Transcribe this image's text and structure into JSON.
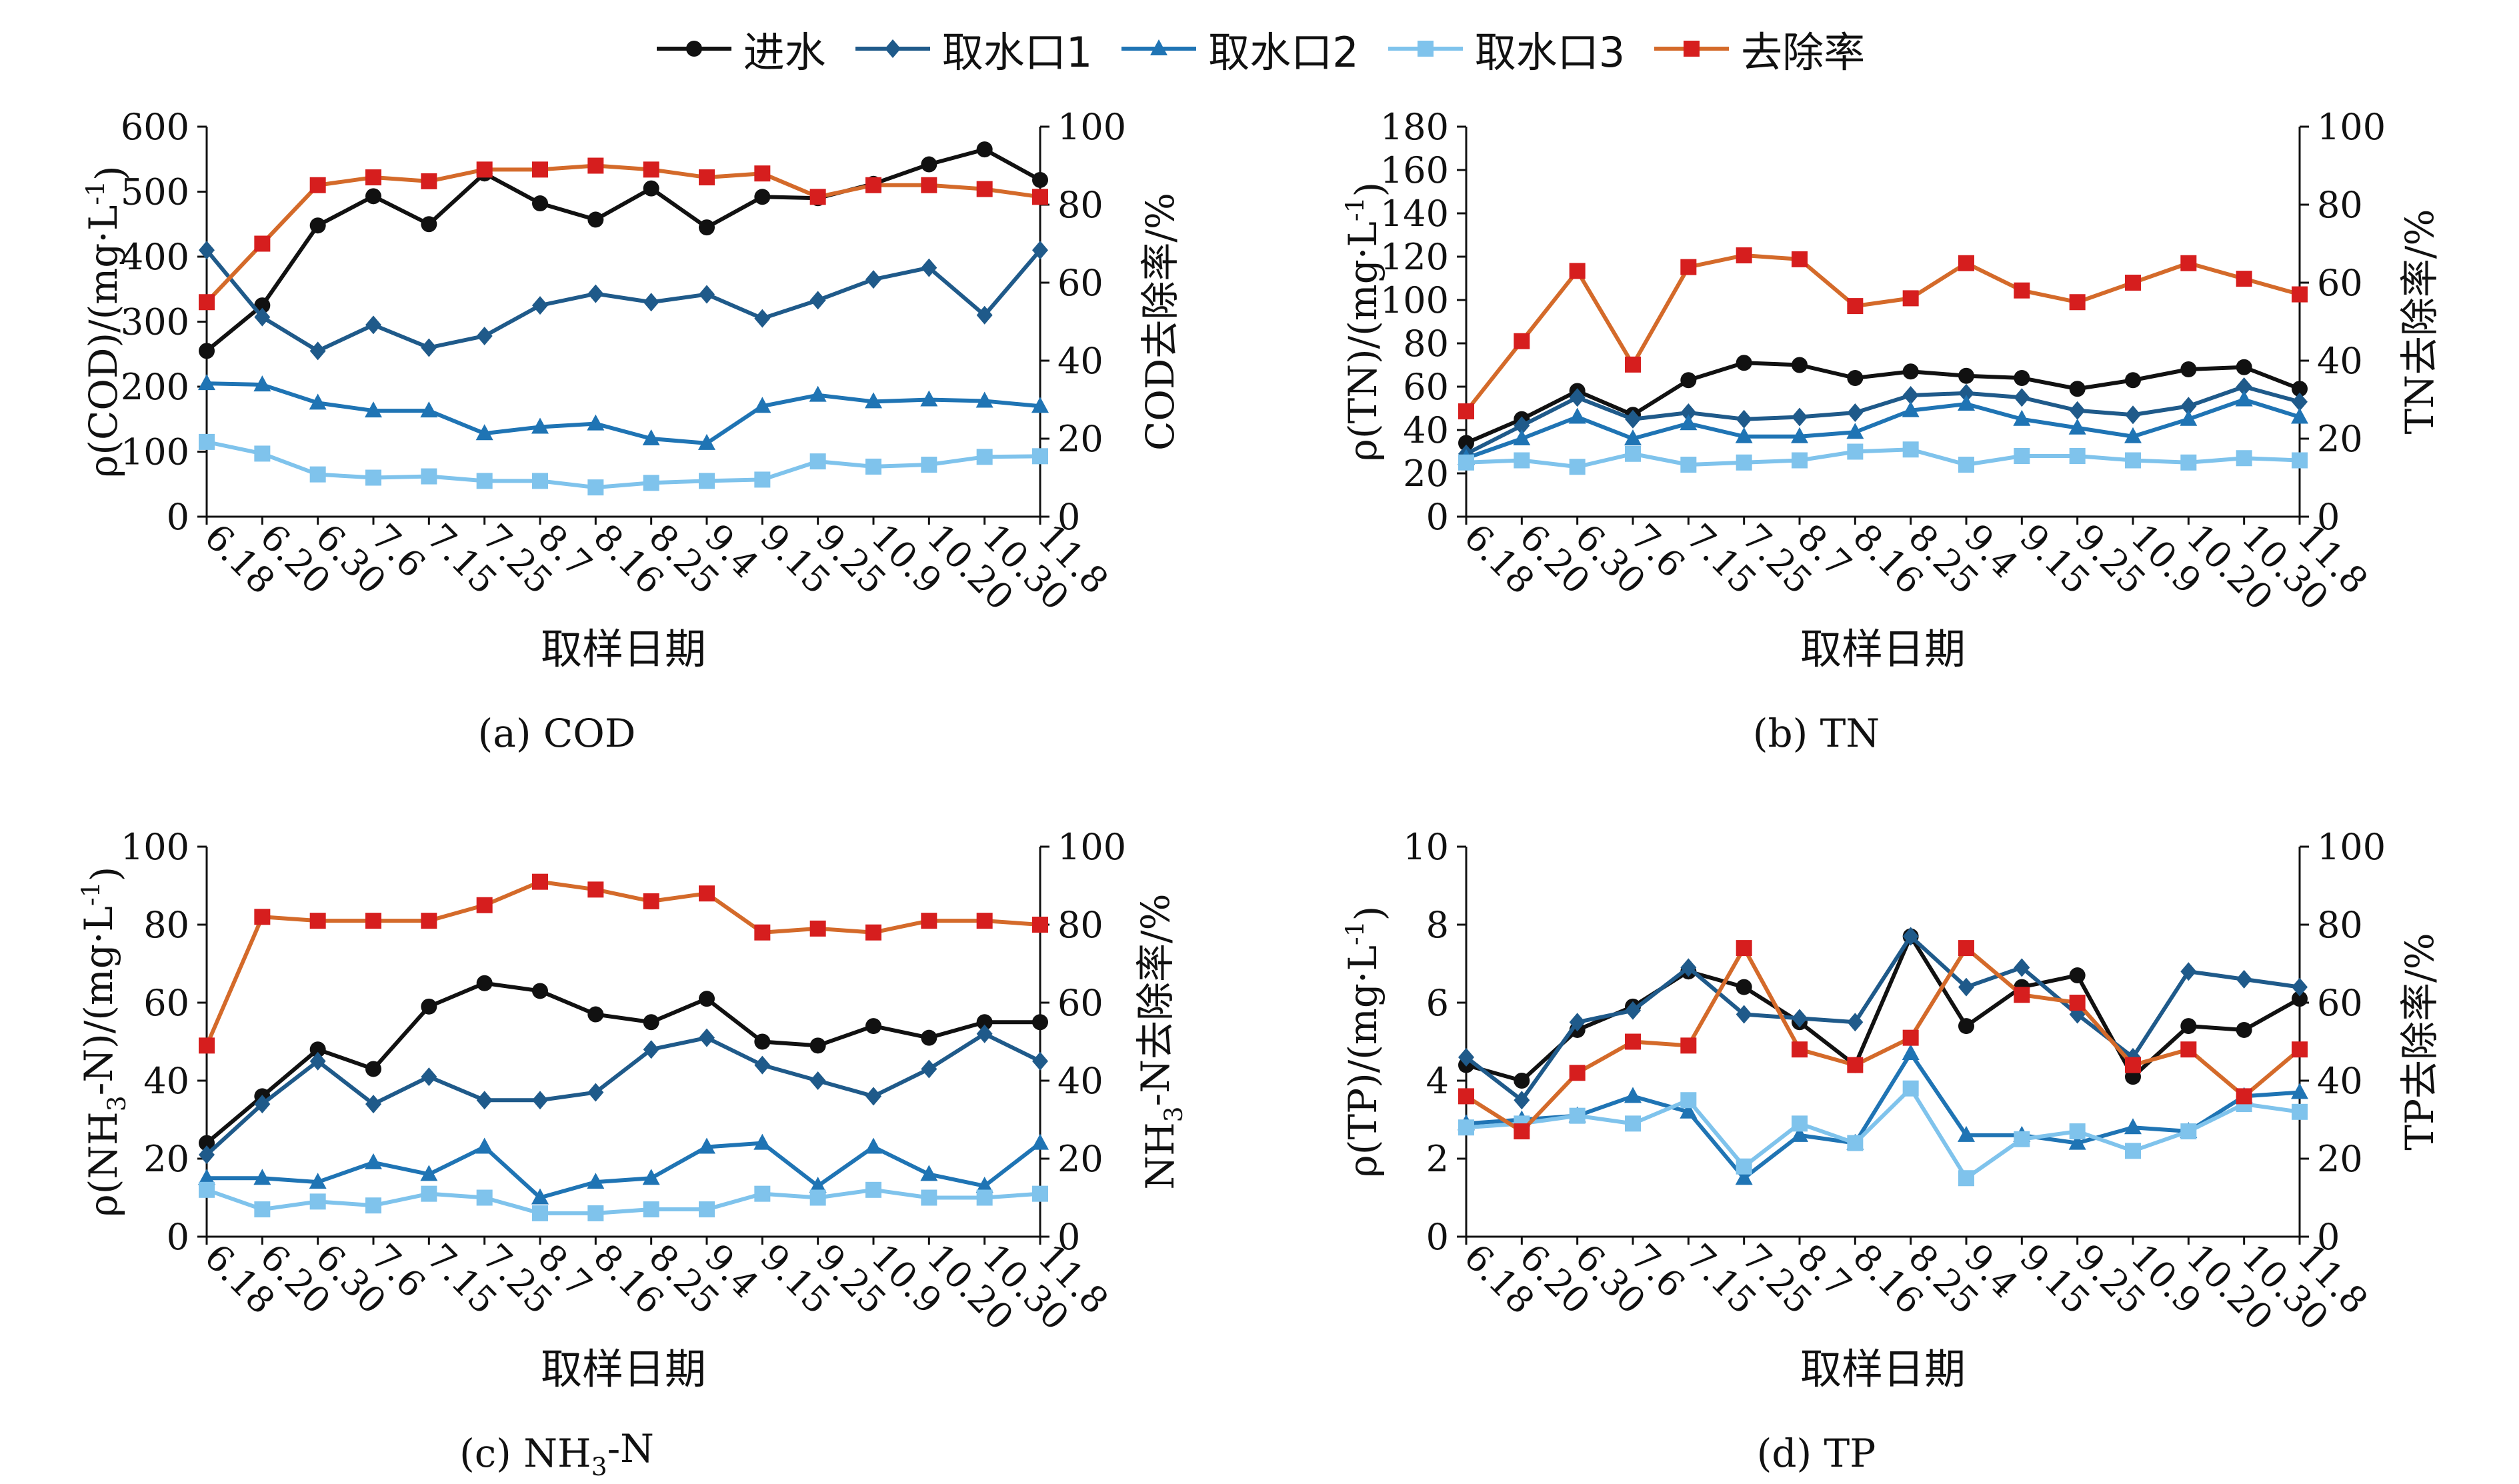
{
  "legend": [
    {
      "name": "进水",
      "color": "#111111",
      "marker": "circle"
    },
    {
      "name": "取水口1",
      "color": "#1f5a8a",
      "marker": "diamond"
    },
    {
      "name": "取水口2",
      "color": "#1f74b4",
      "marker": "triangle"
    },
    {
      "name": "取水口3",
      "color": "#7fc3ec",
      "marker": "square"
    },
    {
      "name": "去除率",
      "color": "#d61e1e",
      "line_color": "#d46a2a",
      "marker": "square"
    }
  ],
  "chart_data": [
    {
      "type": "line",
      "caption": "(a) COD",
      "xlabel": "取样日期",
      "ylabel_left_parts": [
        "ρ(COD)/(mg·L",
        "-1",
        ")"
      ],
      "ylabel_right_parts": [
        "COD去除率/%"
      ],
      "categories": [
        "6.18",
        "6.20",
        "6.30",
        "7.6",
        "7.15",
        "7.25",
        "8.7",
        "8.16",
        "8.25",
        "9.4",
        "9.15",
        "9.25",
        "10.9",
        "10.20",
        "10.30",
        "11.8"
      ],
      "y_left": {
        "min": 0,
        "max": 600,
        "ticks": [
          0,
          100,
          200,
          300,
          400,
          500,
          600
        ]
      },
      "y_right": {
        "min": 0,
        "max": 100,
        "ticks": [
          0,
          20,
          40,
          60,
          80,
          100
        ]
      },
      "series": [
        {
          "name": "进水",
          "axis": "left",
          "values": [
            255,
            325,
            448,
            493,
            450,
            528,
            482,
            457,
            505,
            445,
            492,
            490,
            512,
            542,
            565,
            518
          ]
        },
        {
          "name": "取水口1",
          "axis": "left",
          "values": [
            410,
            307,
            255,
            295,
            260,
            278,
            325,
            343,
            330,
            342,
            305,
            333,
            365,
            383,
            310,
            410
          ]
        },
        {
          "name": "取水口2",
          "axis": "left",
          "values": [
            205,
            203,
            175,
            163,
            163,
            128,
            138,
            143,
            120,
            113,
            170,
            187,
            177,
            180,
            178,
            170
          ]
        },
        {
          "name": "取水口3",
          "axis": "left",
          "values": [
            115,
            97,
            65,
            60,
            62,
            55,
            55,
            45,
            52,
            55,
            57,
            85,
            77,
            80,
            92,
            93
          ]
        },
        {
          "name": "去除率",
          "axis": "right",
          "values": [
            55,
            70,
            85,
            87,
            86,
            89,
            89,
            90,
            89,
            87,
            88,
            82,
            85,
            85,
            84,
            82
          ]
        }
      ]
    },
    {
      "type": "line",
      "caption": "(b) TN",
      "xlabel": "取样日期",
      "ylabel_left_parts": [
        "ρ(TN)/(mg·L",
        "-1",
        ")"
      ],
      "ylabel_right_parts": [
        "TN去除率/%"
      ],
      "categories": [
        "6.18",
        "6.20",
        "6.30",
        "7.6",
        "7.15",
        "7.25",
        "8.7",
        "8.16",
        "8.25",
        "9.4",
        "9.15",
        "9.25",
        "10.9",
        "10.20",
        "10.30",
        "11.8"
      ],
      "y_left": {
        "min": 0,
        "max": 180,
        "ticks": [
          0,
          20,
          40,
          60,
          80,
          100,
          120,
          140,
          160,
          180
        ]
      },
      "y_right": {
        "min": 0,
        "max": 100,
        "ticks": [
          0,
          20,
          40,
          60,
          80,
          100
        ]
      },
      "series": [
        {
          "name": "进水",
          "axis": "left",
          "values": [
            34,
            45,
            58,
            47,
            63,
            71,
            70,
            64,
            67,
            65,
            64,
            59,
            63,
            68,
            69,
            59
          ]
        },
        {
          "name": "取水口1",
          "axis": "left",
          "values": [
            29,
            42,
            55,
            45,
            48,
            45,
            46,
            48,
            56,
            57,
            55,
            49,
            47,
            51,
            60,
            53
          ]
        },
        {
          "name": "取水口2",
          "axis": "left",
          "values": [
            27,
            36,
            46,
            36,
            43,
            37,
            37,
            39,
            49,
            52,
            45,
            41,
            37,
            45,
            54,
            46
          ]
        },
        {
          "name": "取水口3",
          "axis": "left",
          "values": [
            25,
            26,
            23,
            29,
            24,
            25,
            26,
            30,
            31,
            24,
            28,
            28,
            26,
            25,
            27,
            26
          ]
        },
        {
          "name": "去除率",
          "axis": "right",
          "values": [
            27,
            45,
            63,
            39,
            64,
            67,
            66,
            54,
            56,
            65,
            58,
            55,
            60,
            65,
            61,
            57
          ]
        }
      ]
    },
    {
      "type": "line",
      "caption_parts": [
        "(c) NH",
        "3",
        "-N"
      ],
      "xlabel": "取样日期",
      "ylabel_left_parts": [
        "ρ(NH",
        "3",
        "-N)/(mg·L",
        "-1",
        ")"
      ],
      "ylabel_right_parts": [
        "NH",
        "3",
        "-N去除率/%"
      ],
      "categories": [
        "6.18",
        "6.20",
        "6.30",
        "7.6",
        "7.15",
        "7.25",
        "8.7",
        "8.16",
        "8.25",
        "9.4",
        "9.15",
        "9.25",
        "10.9",
        "10.20",
        "10.30",
        "11.8"
      ],
      "y_left": {
        "min": 0,
        "max": 100,
        "ticks": [
          0,
          20,
          40,
          60,
          80,
          100
        ]
      },
      "y_right": {
        "min": 0,
        "max": 100,
        "ticks": [
          0,
          20,
          40,
          60,
          80,
          100
        ]
      },
      "series": [
        {
          "name": "进水",
          "axis": "left",
          "values": [
            24,
            36,
            48,
            43,
            59,
            65,
            63,
            57,
            55,
            61,
            50,
            49,
            54,
            51,
            55,
            55
          ]
        },
        {
          "name": "取水口1",
          "axis": "left",
          "values": [
            21,
            34,
            45,
            34,
            41,
            35,
            35,
            37,
            48,
            51,
            44,
            40,
            36,
            43,
            52,
            45
          ]
        },
        {
          "name": "取水口2",
          "axis": "left",
          "values": [
            15,
            15,
            14,
            19,
            16,
            23,
            10,
            14,
            15,
            23,
            24,
            13,
            23,
            16,
            13,
            24
          ]
        },
        {
          "name": "取水口3",
          "axis": "left",
          "values": [
            12,
            7,
            9,
            8,
            11,
            10,
            6,
            6,
            7,
            7,
            11,
            10,
            12,
            10,
            10,
            11
          ]
        },
        {
          "name": "去除率",
          "axis": "right",
          "values": [
            49,
            82,
            81,
            81,
            81,
            85,
            91,
            89,
            86,
            88,
            78,
            79,
            78,
            81,
            81,
            80
          ]
        }
      ]
    },
    {
      "type": "line",
      "caption": "(d) TP",
      "xlabel": "取样日期",
      "ylabel_left_parts": [
        "ρ(TP)/(mg·L",
        "-1",
        ")"
      ],
      "ylabel_right_parts": [
        "TP去除率/%"
      ],
      "categories": [
        "6.18",
        "6.20",
        "6.30",
        "7.6",
        "7.15",
        "7.25",
        "8.7",
        "8.16",
        "8.25",
        "9.4",
        "9.15",
        "9.25",
        "10.9",
        "10.20",
        "10.30",
        "11.8"
      ],
      "y_left": {
        "min": 0,
        "max": 10,
        "ticks": [
          0,
          2,
          4,
          6,
          8,
          10
        ]
      },
      "y_right": {
        "min": 0,
        "max": 100,
        "ticks": [
          0,
          20,
          40,
          60,
          80,
          100
        ]
      },
      "series": [
        {
          "name": "进水",
          "axis": "left",
          "values": [
            4.4,
            4.0,
            5.3,
            5.9,
            6.8,
            6.4,
            5.5,
            4.4,
            7.7,
            5.4,
            6.4,
            6.7,
            4.1,
            5.4,
            5.3,
            6.1
          ]
        },
        {
          "name": "取水口1",
          "axis": "left",
          "values": [
            4.6,
            3.5,
            5.5,
            5.8,
            6.9,
            5.7,
            5.6,
            5.5,
            7.7,
            6.4,
            6.9,
            5.7,
            4.6,
            6.8,
            6.6,
            6.4
          ]
        },
        {
          "name": "取水口2",
          "axis": "left",
          "values": [
            2.9,
            3.0,
            3.1,
            3.6,
            3.2,
            1.5,
            2.6,
            2.4,
            4.7,
            2.6,
            2.6,
            2.4,
            2.8,
            2.7,
            3.6,
            3.7
          ]
        },
        {
          "name": "取水口3",
          "axis": "left",
          "values": [
            2.8,
            2.9,
            3.1,
            2.9,
            3.5,
            1.8,
            2.9,
            2.4,
            3.8,
            1.5,
            2.5,
            2.7,
            2.2,
            2.7,
            3.4,
            3.2
          ]
        },
        {
          "name": "去除率",
          "axis": "right",
          "values": [
            36,
            27,
            42,
            50,
            49,
            74,
            48,
            44,
            51,
            74,
            62,
            60,
            44,
            48,
            36,
            48
          ]
        }
      ]
    }
  ]
}
